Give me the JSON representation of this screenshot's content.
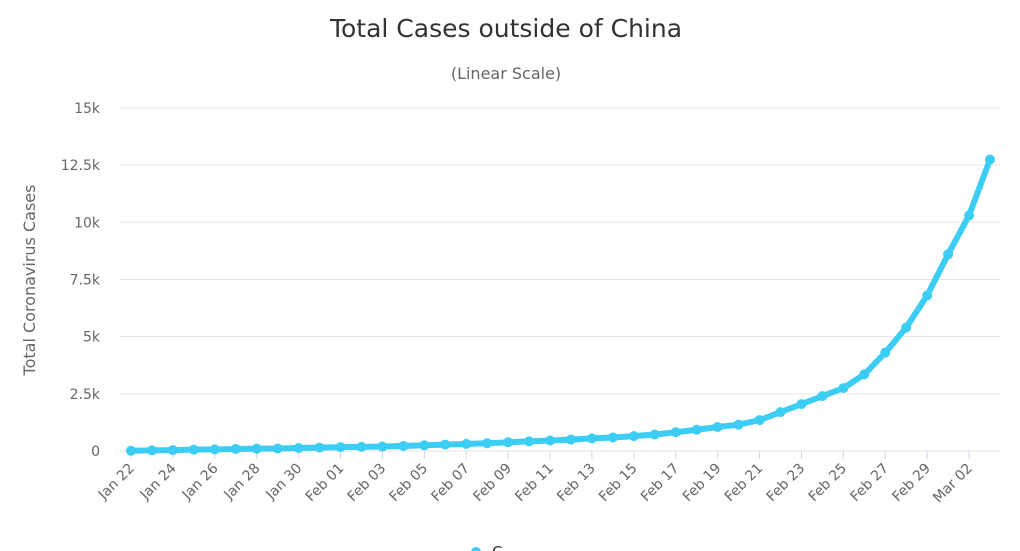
{
  "chart_data": {
    "type": "line",
    "title": "Total Cases outside of China",
    "subtitle": "(Linear Scale)",
    "xlabel": "",
    "ylabel": "Total Coronavirus Cases",
    "ylim": [
      0,
      15000
    ],
    "yticks": [
      0,
      2500,
      5000,
      7500,
      10000,
      12500,
      15000
    ],
    "ytick_labels": [
      "0",
      "2.5k",
      "5k",
      "7.5k",
      "10k",
      "12.5k",
      "15k"
    ],
    "grid": true,
    "x": [
      "Jan 22",
      "Jan 23",
      "Jan 24",
      "Jan 25",
      "Jan 26",
      "Jan 27",
      "Jan 28",
      "Jan 29",
      "Jan 30",
      "Jan 31",
      "Feb 01",
      "Feb 02",
      "Feb 03",
      "Feb 04",
      "Feb 05",
      "Feb 06",
      "Feb 07",
      "Feb 08",
      "Feb 09",
      "Feb 10",
      "Feb 11",
      "Feb 12",
      "Feb 13",
      "Feb 14",
      "Feb 15",
      "Feb 16",
      "Feb 17",
      "Feb 18",
      "Feb 19",
      "Feb 20",
      "Feb 21",
      "Feb 22",
      "Feb 23",
      "Feb 24",
      "Feb 25",
      "Feb 26",
      "Feb 27",
      "Feb 28",
      "Feb 29",
      "Mar 01",
      "Mar 02",
      "Mar 03"
    ],
    "x_tick_labels": [
      "Jan 22",
      "Jan 24",
      "Jan 26",
      "Jan 28",
      "Jan 30",
      "Feb 01",
      "Feb 03",
      "Feb 05",
      "Feb 07",
      "Feb 09",
      "Feb 11",
      "Feb 13",
      "Feb 15",
      "Feb 17",
      "Feb 19",
      "Feb 21",
      "Feb 23",
      "Feb 25",
      "Feb 27",
      "Feb 29",
      "Mar 02"
    ],
    "series": [
      {
        "color": "#3ccdf5",
        "values": [
          10,
          25,
          40,
          60,
          70,
          90,
          100,
          110,
          130,
          150,
          170,
          180,
          195,
          220,
          250,
          280,
          310,
          340,
          380,
          420,
          460,
          500,
          550,
          590,
          650,
          720,
          820,
          930,
          1050,
          1150,
          1350,
          1700,
          2050,
          2400,
          2750,
          3350,
          4300,
          5400,
          6800,
          8600,
          10300,
          12750
        ]
      }
    ],
    "legend": {
      "position": "bottom-center",
      "label": "C"
    }
  }
}
